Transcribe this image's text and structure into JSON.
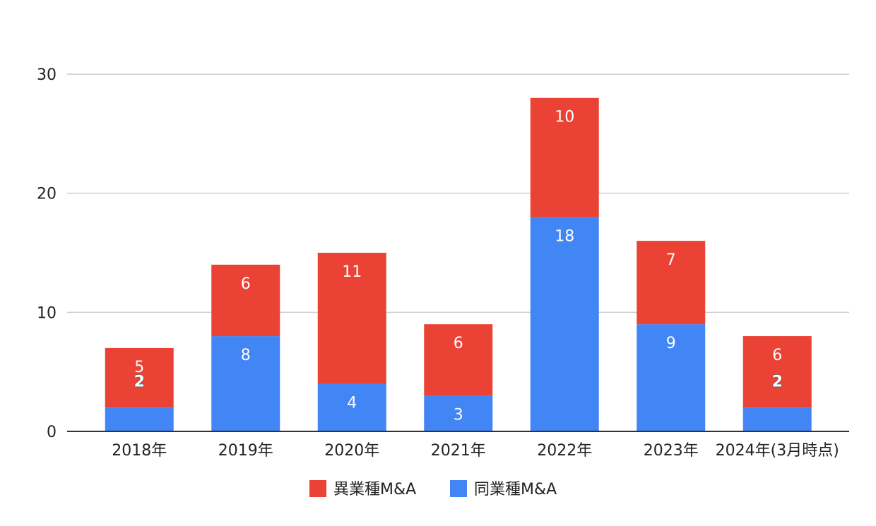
{
  "chart_data": {
    "type": "bar",
    "stacked": true,
    "categories": [
      "2018年",
      "2019年",
      "2020年",
      "2021年",
      "2022年",
      "2023年",
      "2024年(3月時点)"
    ],
    "series": [
      {
        "name": "同業種M&A",
        "color": "#4285f4",
        "values": [
          2,
          8,
          4,
          3,
          18,
          9,
          2
        ]
      },
      {
        "name": "異業種M&A",
        "color": "#ea4335",
        "values": [
          5,
          6,
          11,
          6,
          10,
          7,
          6
        ]
      }
    ],
    "yticks": [
      0,
      10,
      20,
      30
    ],
    "ylim": [
      0,
      30
    ],
    "grid": true,
    "legend_position": "bottom",
    "legend_order": [
      "異業種M&A",
      "同業種M&A"
    ]
  }
}
